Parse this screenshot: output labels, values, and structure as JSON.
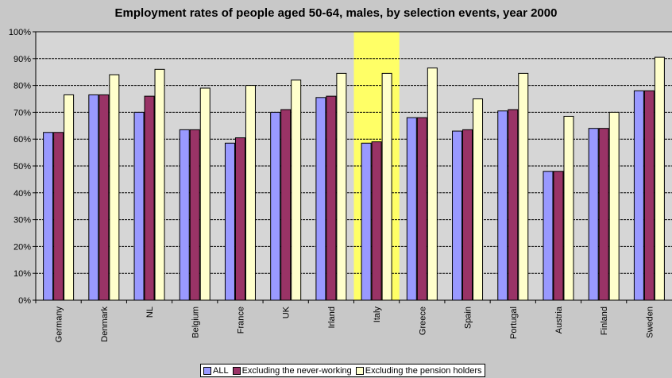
{
  "chart_data": {
    "type": "bar",
    "title": "Employment rates of people aged 50-64, males, by selection events, year 2000",
    "categories": [
      "Germany",
      "Denmark",
      "NL",
      "Belgium",
      "France",
      "UK",
      "Irland",
      "Italy",
      "Greece",
      "Spain",
      "Portugal",
      "Austria",
      "Finland",
      "Sweden"
    ],
    "series": [
      {
        "name": "ALL",
        "color": "#9999ff",
        "values": [
          62.5,
          76.5,
          70,
          63.5,
          58.5,
          70,
          75.5,
          58.5,
          68,
          63,
          70.5,
          48,
          64,
          78
        ]
      },
      {
        "name": "Excluding the never-working",
        "color": "#993366",
        "values": [
          62.5,
          76.5,
          76,
          63.5,
          60.5,
          71,
          76,
          59,
          68,
          63.5,
          71,
          48,
          64,
          78
        ]
      },
      {
        "name": "Excluding the pension holders",
        "color": "#ffffcc",
        "values": [
          76.5,
          84,
          86,
          79,
          80,
          82,
          84.5,
          84.5,
          86.5,
          75,
          84.5,
          68.5,
          70,
          90.5
        ]
      }
    ],
    "ylim": [
      0,
      100
    ],
    "yticks": [
      "0%",
      "10%",
      "20%",
      "30%",
      "40%",
      "50%",
      "60%",
      "70%",
      "80%",
      "90%",
      "100%"
    ],
    "highlight_category": "Italy",
    "highlight_color": "#ffff66",
    "grid": true,
    "legend_position": "bottom"
  }
}
